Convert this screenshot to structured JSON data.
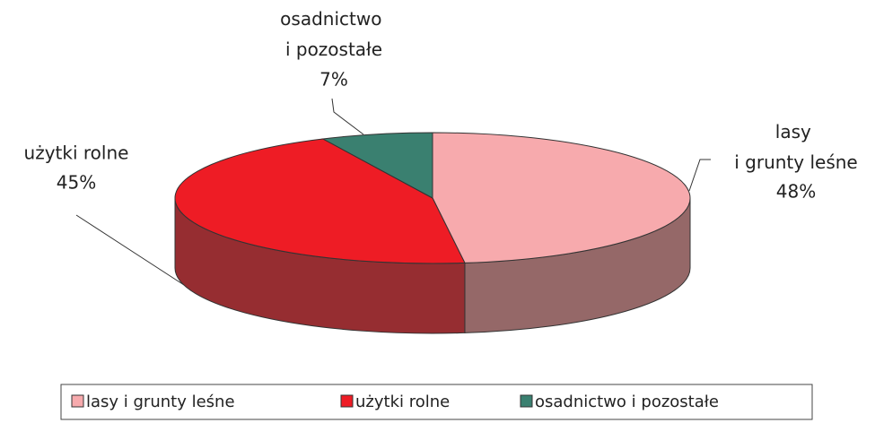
{
  "chart_data": {
    "type": "pie",
    "categories": [
      "lasy i grunty leśne",
      "użytki rolne",
      "osadnictwo i pozostałe"
    ],
    "values": [
      48,
      45,
      7
    ],
    "value_labels": [
      "48%",
      "45%",
      "7%"
    ],
    "colors": [
      "#f7aaad",
      "#ee1c25",
      "#3a8070"
    ],
    "side_colors": [
      "#956868",
      "#962d31",
      "#2a5c50"
    ],
    "legend": "bottom"
  }
}
